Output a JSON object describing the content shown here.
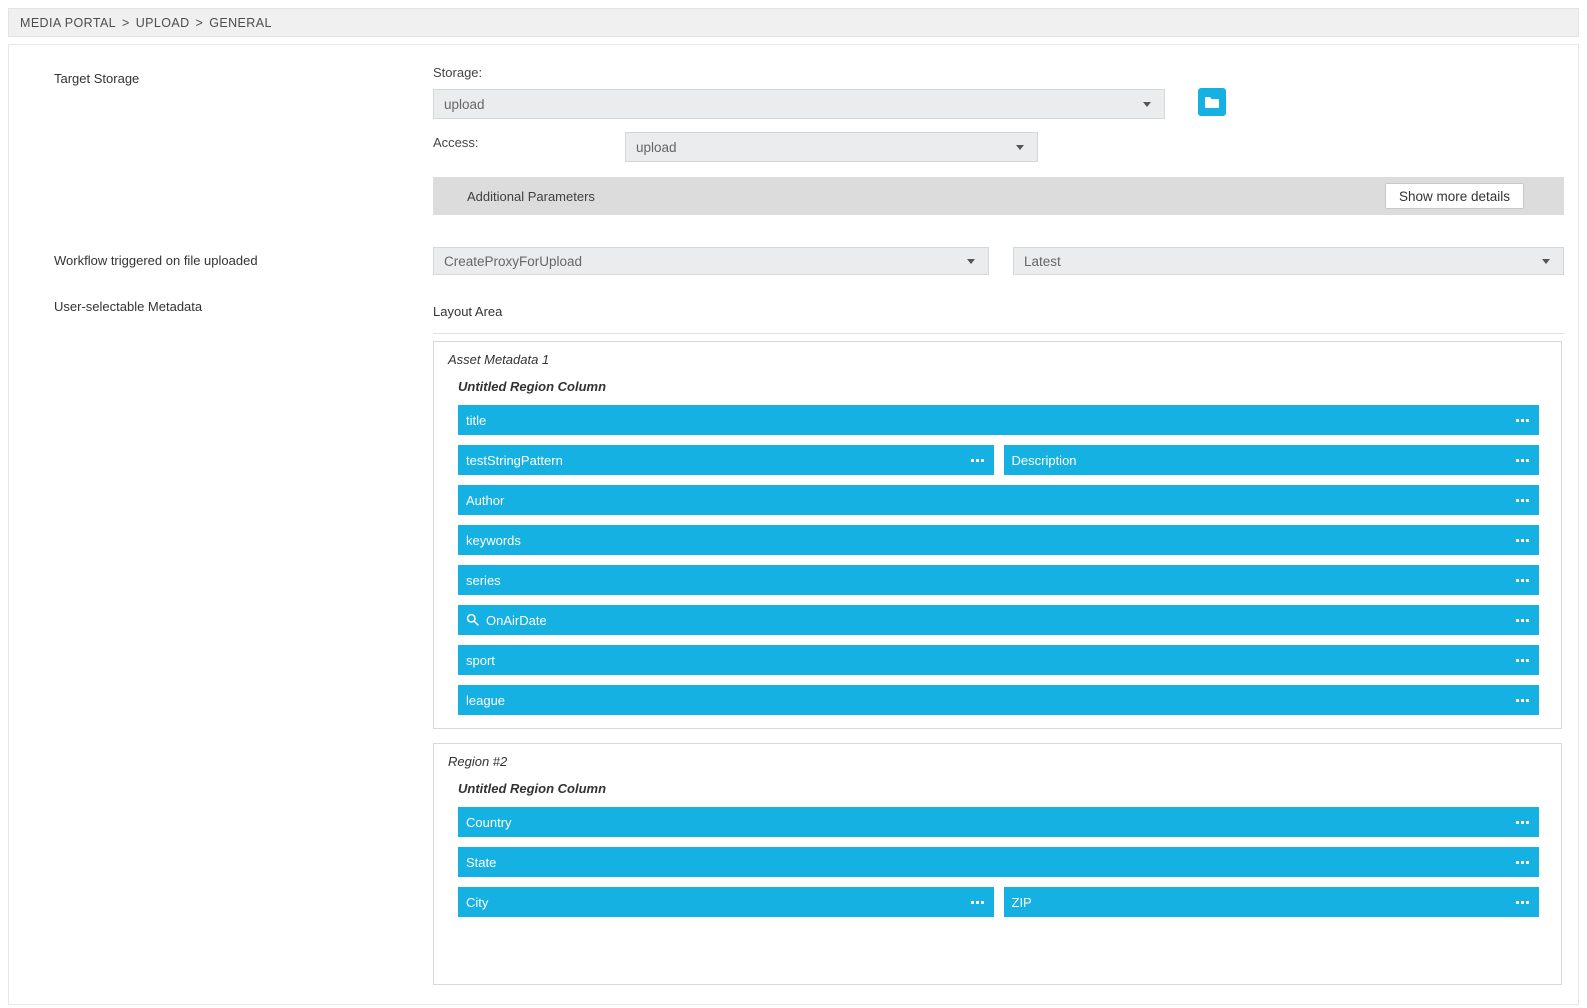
{
  "colors": {
    "accent": "#16b1e3"
  },
  "breadcrumb": {
    "items": [
      "MEDIA PORTAL",
      "UPLOAD",
      "GENERAL"
    ],
    "separator": ">"
  },
  "target_storage": {
    "label": "Target Storage",
    "storage_label": "Storage:",
    "storage_value": "upload",
    "access_label": "Access:",
    "access_value": "upload",
    "additional_parameters_label": "Additional Parameters",
    "show_more_details_label": "Show more details"
  },
  "workflow": {
    "label": "Workflow triggered on file uploaded",
    "workflow_value": "CreateProxyForUpload",
    "version_value": "Latest"
  },
  "metadata": {
    "label": "User-selectable Metadata",
    "layout_area_label": "Layout Area",
    "regions": [
      {
        "title": "Asset Metadata 1",
        "column_title": "Untitled Region Column",
        "rows": [
          [
            {
              "label": "title"
            }
          ],
          [
            {
              "label": "testStringPattern"
            },
            {
              "label": "Description"
            }
          ],
          [
            {
              "label": "Author"
            }
          ],
          [
            {
              "label": "keywords"
            }
          ],
          [
            {
              "label": "series"
            }
          ],
          [
            {
              "label": "OnAirDate",
              "icon": "search-icon"
            }
          ],
          [
            {
              "label": "sport"
            }
          ],
          [
            {
              "label": "league"
            }
          ]
        ]
      },
      {
        "title": "Region #2",
        "column_title": "Untitled Region Column",
        "rows": [
          [
            {
              "label": "Country"
            }
          ],
          [
            {
              "label": "State"
            }
          ],
          [
            {
              "label": "City"
            },
            {
              "label": "ZIP"
            }
          ]
        ]
      }
    ]
  }
}
